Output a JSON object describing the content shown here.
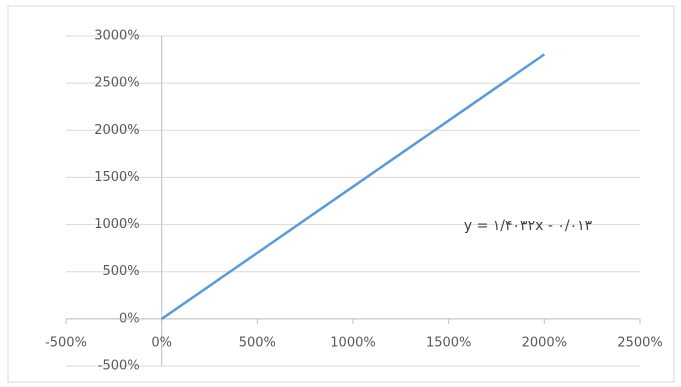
{
  "chart_data": {
    "type": "line",
    "x": [
      0,
      500,
      1000,
      1500,
      2000
    ],
    "series": [
      {
        "color": "#5b9bd5",
        "values": [
          -1,
          700,
          1402,
          2103,
          2805
        ]
      }
    ],
    "annotation": "y = ۱/۴۰۳۲x - ۰/۰۱۳",
    "xlim": [
      -500,
      2500
    ],
    "xticks": [
      {
        "value": -500,
        "label": "-500%"
      },
      {
        "value": 0,
        "label": "0%"
      },
      {
        "value": 500,
        "label": "500%"
      },
      {
        "value": 1000,
        "label": "1000%"
      },
      {
        "value": 1500,
        "label": "1500%"
      },
      {
        "value": 2000,
        "label": "2000%"
      },
      {
        "value": 2500,
        "label": "2500%"
      }
    ],
    "ylim": [
      -500,
      3000
    ],
    "yticks": [
      {
        "value": -500,
        "label": "-500%"
      },
      {
        "value": 0,
        "label": "0%"
      },
      {
        "value": 500,
        "label": "500%"
      },
      {
        "value": 1000,
        "label": "1000%"
      },
      {
        "value": 1500,
        "label": "1500%"
      },
      {
        "value": 2000,
        "label": "2000%"
      },
      {
        "value": 2500,
        "label": "2500%"
      },
      {
        "value": 3000,
        "label": "3000%"
      }
    ],
    "grid": true
  }
}
